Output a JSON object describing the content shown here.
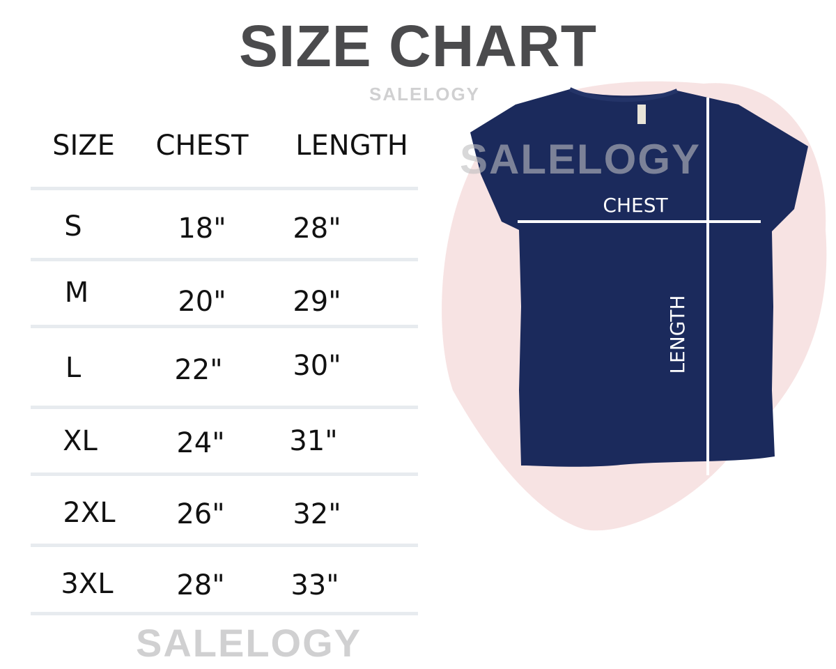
{
  "title": "SIZE CHART",
  "watermark": "SALELOGY",
  "table": {
    "headers": [
      "SIZE",
      "CHEST",
      "LENGTH"
    ],
    "rows": [
      {
        "size": "S",
        "chest": "18\"",
        "length": "28\""
      },
      {
        "size": "M",
        "chest": "20\"",
        "length": "29\""
      },
      {
        "size": "L",
        "chest": "22\"",
        "length": "30\""
      },
      {
        "size": "XL",
        "chest": "24\"",
        "length": "31\""
      },
      {
        "size": "2XL",
        "chest": "26\"",
        "length": "32\""
      },
      {
        "size": "3XL",
        "chest": "28\"",
        "length": "33\""
      }
    ]
  },
  "diagram": {
    "chest_label": "CHEST",
    "length_label": "LENGTH",
    "shirt_color": "#1b2a5c",
    "splash_color": "#f5dcdc",
    "title_color": "#4b4b4d"
  }
}
